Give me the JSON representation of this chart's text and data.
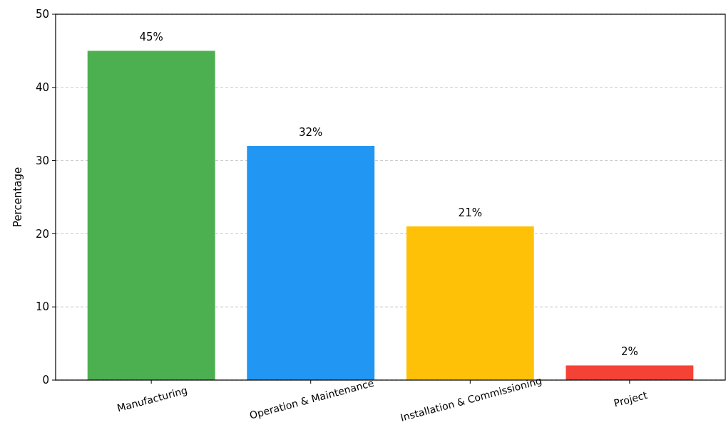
{
  "chart_data": {
    "type": "bar",
    "ylabel": "Percentage",
    "categories": [
      "Manufacturing",
      "Operation & Maintenance",
      "Installation & Commissioning",
      "Project"
    ],
    "values": [
      45,
      32,
      21,
      2
    ],
    "colors": [
      "#4caf50",
      "#2196f3",
      "#ffc107",
      "#f44336"
    ],
    "value_labels": [
      "45%",
      "32%",
      "21%",
      "2%"
    ],
    "ylim": [
      0,
      50
    ],
    "yticks": [
      0,
      10,
      20,
      30,
      40,
      50
    ],
    "grid": "y"
  }
}
